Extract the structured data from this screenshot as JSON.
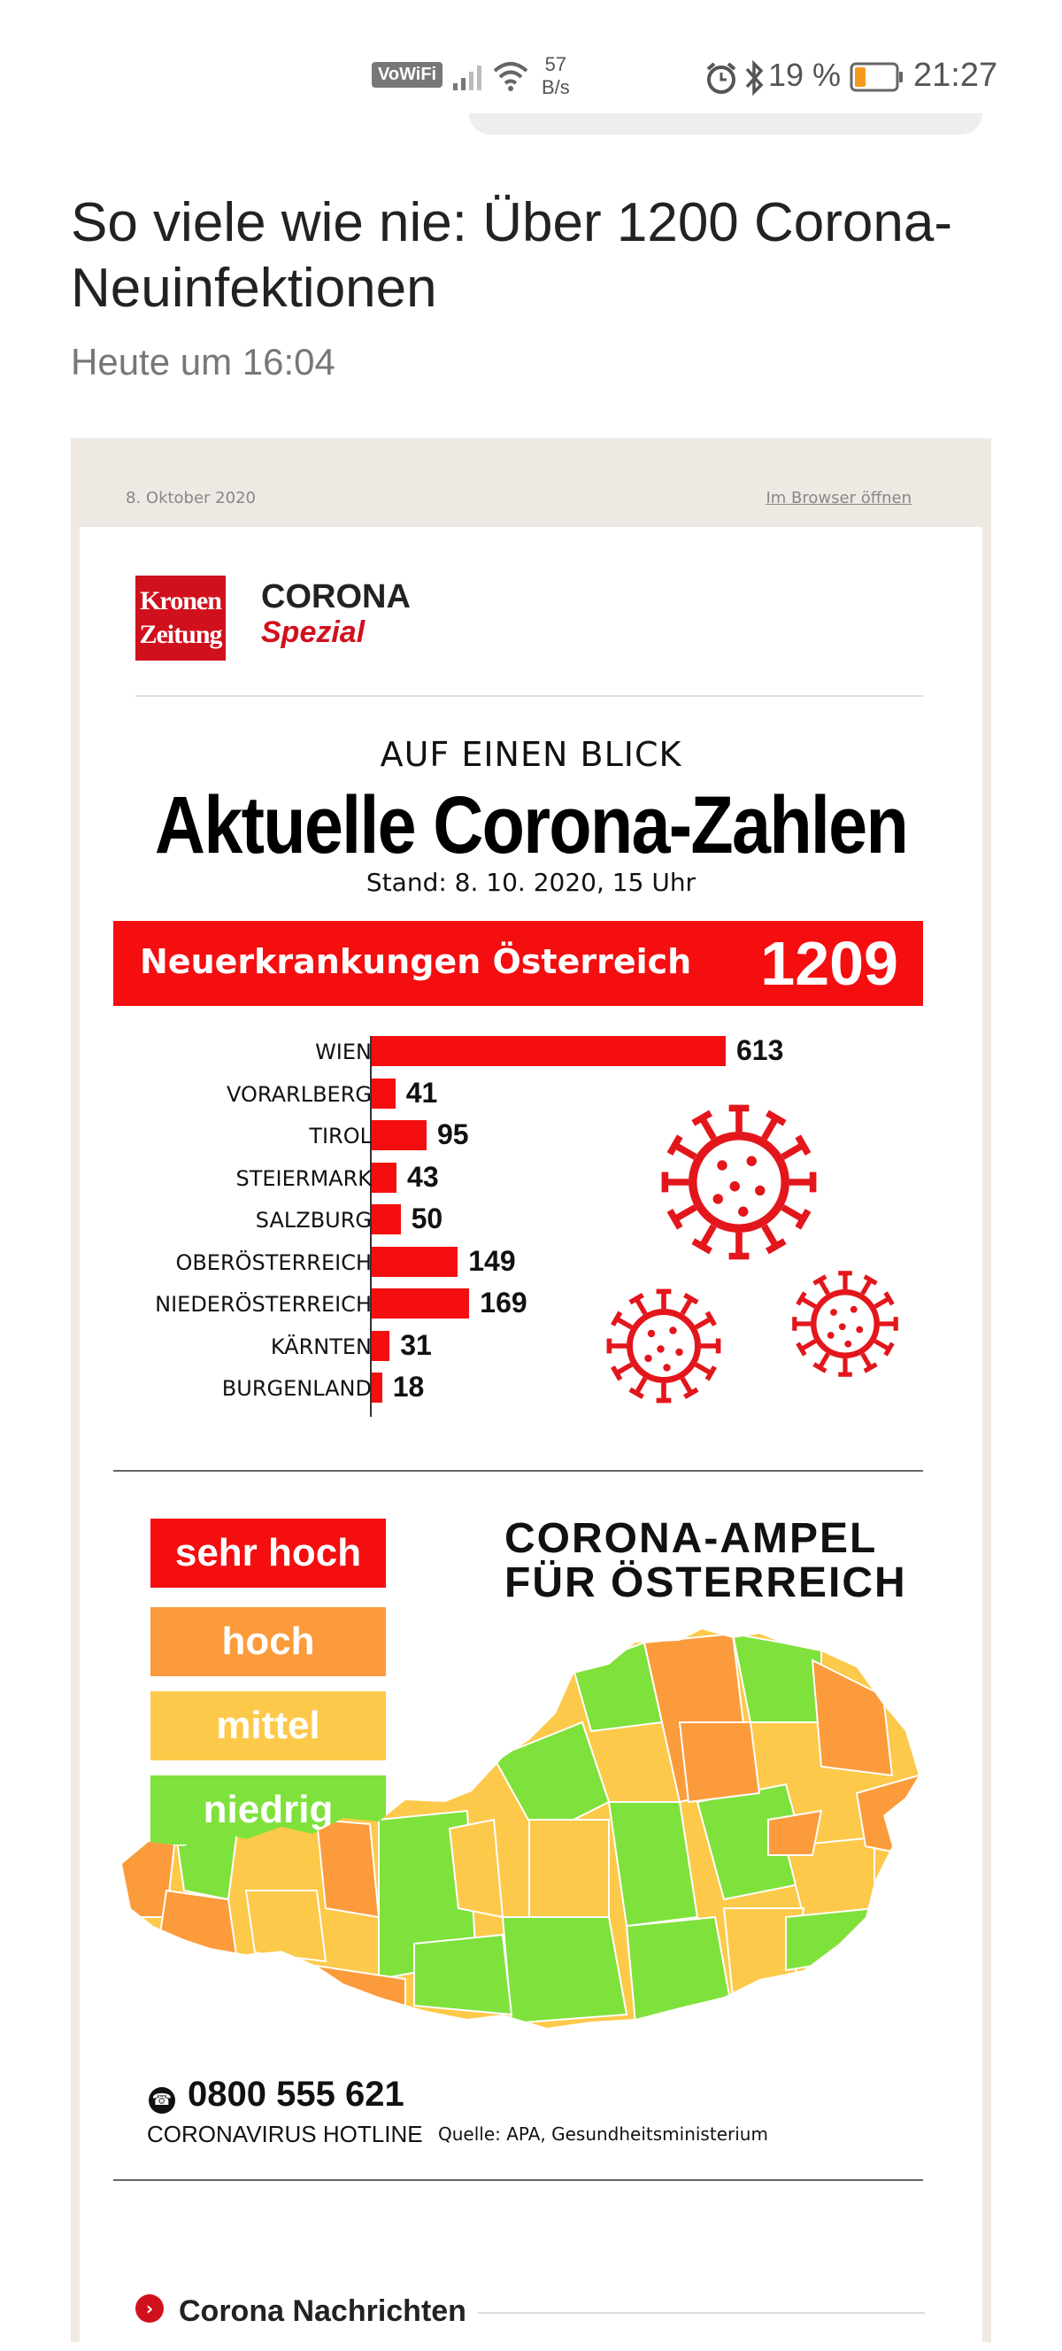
{
  "status_bar": {
    "vowifi": "VoWiFi",
    "speed_value": "57",
    "speed_unit": "B/s",
    "battery": "19 %",
    "time": "21:27",
    "icons": [
      "signal-icon",
      "wifi-icon",
      "alarm-icon",
      "bluetooth-icon",
      "battery-icon"
    ]
  },
  "article": {
    "title": "So viele wie nie: Über 1200 Corona-Neuinfektionen",
    "published": "Heute um 16:04"
  },
  "newsletter": {
    "date": "8. Oktober 2020",
    "browser_link": "Im Browser öffnen",
    "logo_text_1": "Kronen",
    "logo_text_2": "Zeitung",
    "brand_title": "CORONA",
    "brand_subtitle": "Spezial",
    "kicker": "AUF EINEN BLICK",
    "headline": "Aktuelle Corona-Zahlen",
    "stand": "Stand: 8. 10. 2020, 15 Uhr",
    "total_label": "Neuerkrankungen Österreich",
    "total_value": "1209",
    "ampel_title_1": "CORONA-AMPEL",
    "ampel_title_2": "FÜR ÖSTERREICH",
    "legend": [
      {
        "label": "sehr hoch",
        "color": "#f40e10"
      },
      {
        "label": "hoch",
        "color": "#fb9b3b"
      },
      {
        "label": "mittel",
        "color": "#fdc94a"
      },
      {
        "label": "niedrig",
        "color": "#7fe13c"
      }
    ],
    "hotline_number": "0800 555 621",
    "hotline_label": "CORONAVIRUS HOTLINE",
    "source": "Quelle: APA, Gesundheitsministerium",
    "news_section": "Corona Nachrichten"
  },
  "chart_data": {
    "type": "bar",
    "orientation": "horizontal",
    "categories": [
      "WIEN",
      "VORARLBERG",
      "TIROL",
      "STEIERMARK",
      "SALZBURG",
      "OBERÖSTERREICH",
      "NIEDERÖSTERREICH",
      "KÄRNTEN",
      "BURGENLAND"
    ],
    "values": [
      613,
      41,
      95,
      43,
      50,
      149,
      169,
      31,
      18
    ],
    "value_labels": [
      "613",
      "41",
      "95",
      "43",
      "50",
      "149",
      "169",
      "31",
      "18"
    ],
    "bar_color": "#f40e10"
  }
}
